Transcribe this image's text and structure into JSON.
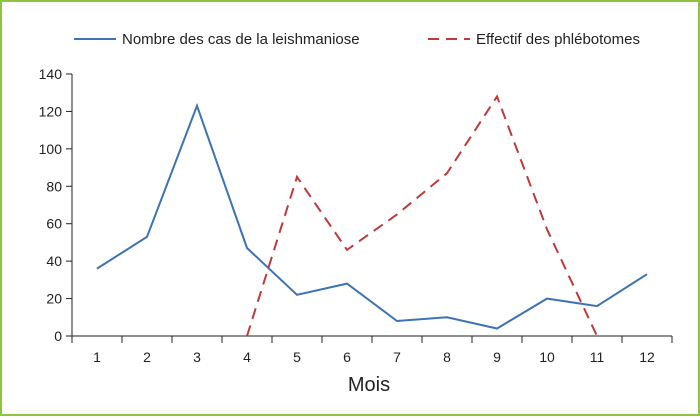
{
  "chart_data": {
    "type": "line",
    "title": "",
    "xlabel": "Mois",
    "ylabel": "",
    "x": [
      1,
      2,
      3,
      4,
      5,
      6,
      7,
      8,
      9,
      10,
      11,
      12
    ],
    "xlim": [
      0.5,
      12.5
    ],
    "ylim": [
      0,
      140
    ],
    "yticks": [
      0,
      20,
      40,
      60,
      80,
      100,
      120,
      140
    ],
    "grid": false,
    "legend_position": "top",
    "series": [
      {
        "name": "Nombre des cas de la leishmaniose",
        "color": "#3d72b5",
        "style": "solid",
        "x": [
          1,
          2,
          3,
          4,
          5,
          6,
          7,
          8,
          9,
          10,
          11,
          12
        ],
        "values": [
          36,
          53,
          123,
          47,
          22,
          28,
          8,
          10,
          4,
          20,
          16,
          33
        ]
      },
      {
        "name": "Effectif des phlébotomes",
        "color": "#c0393b",
        "style": "dashed",
        "x": [
          4,
          5,
          6,
          7,
          8,
          9,
          10,
          11
        ],
        "values": [
          0,
          85,
          46,
          65,
          87,
          128,
          57,
          0
        ]
      }
    ]
  }
}
